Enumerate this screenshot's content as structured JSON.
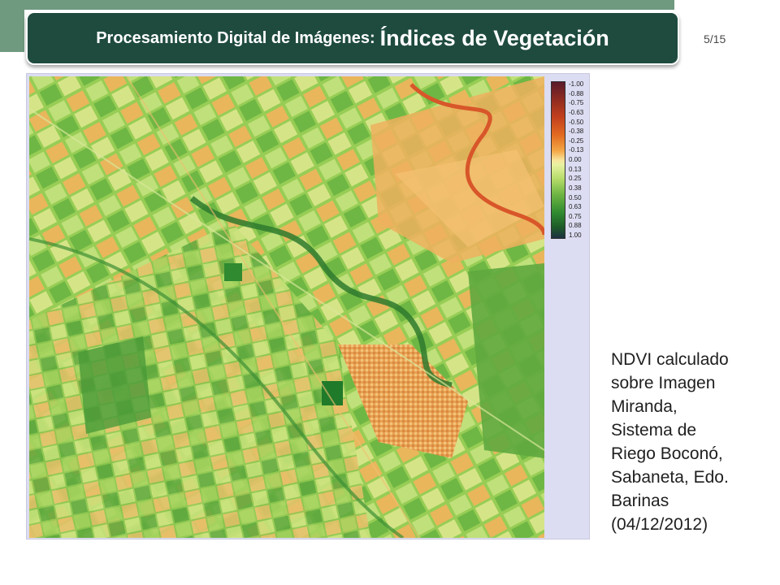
{
  "header": {
    "title_main": "Procesamiento Digital de Imágenes:",
    "title_accent": "Índices de Vegetación",
    "page": "5/15"
  },
  "legend": {
    "ticks": [
      "-1.00",
      "-0.88",
      "-0.75",
      "-0.63",
      "-0.50",
      "-0.38",
      "-0.25",
      "-0.13",
      "0.00",
      "0.13",
      "0.25",
      "0.38",
      "0.50",
      "0.63",
      "0.75",
      "0.88",
      "1.00"
    ]
  },
  "caption": {
    "lines": [
      "NDVI calculado",
      "sobre Imagen",
      "Miranda,",
      "Sistema de",
      "Riego Boconó,",
      "Sabaneta, Edo.",
      "Barinas",
      "(04/12/2012)"
    ]
  },
  "colors": {
    "header_bg": "#1f4b3f",
    "accent_band": "#6f9a80",
    "figure_bg": "#dcdcf2"
  }
}
